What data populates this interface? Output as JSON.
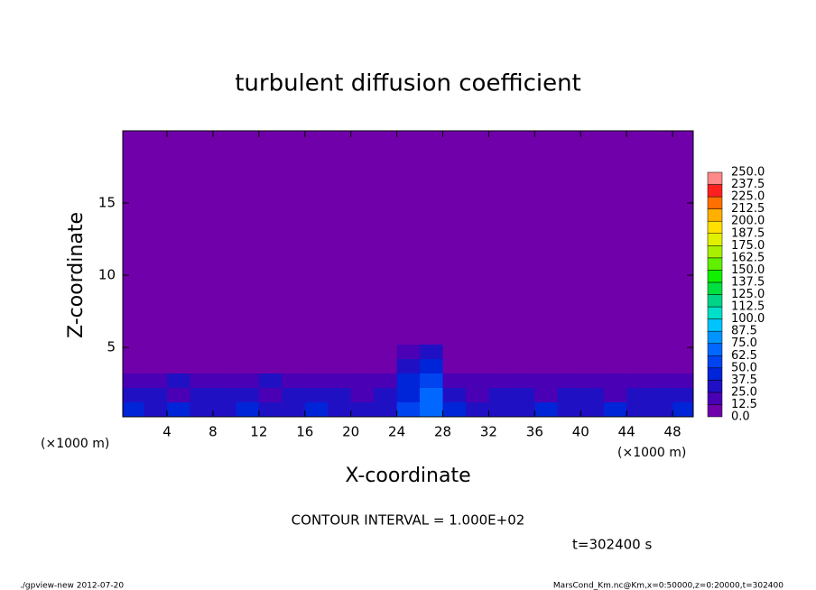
{
  "chart_data": {
    "type": "contour",
    "title": "turbulent diffusion coefficient",
    "x_label": "X-coordinate",
    "y_label": "Z-coordinate",
    "x_unit_left": "(×1000 m)",
    "x_unit_right": "(×1000 m)",
    "contour_interval": "CONTOUR INTERVAL = 1.000E+02",
    "time_label": "t=302400 s",
    "footer_left": "./gpview-new  2012-07-20",
    "footer_right": "MarsCond_Km.nc@Km,x=0:50000,z=0:20000,t=302400",
    "xlim": [
      0.15,
      49.8
    ],
    "ylim": [
      0.2,
      20
    ],
    "xticks": [
      4,
      8,
      12,
      16,
      20,
      24,
      28,
      32,
      36,
      40,
      44,
      48
    ],
    "yticks": [
      5,
      10,
      15
    ],
    "x": [
      1,
      3,
      5,
      7,
      9,
      11,
      13,
      15,
      17,
      19,
      21,
      23,
      25,
      27,
      29,
      31,
      33,
      35,
      37,
      39,
      41,
      43,
      45,
      47,
      49
    ],
    "y": [
      0.7,
      1.7,
      2.7,
      3.7,
      4.7
    ],
    "z": [
      [
        37.5,
        25,
        37.5,
        30,
        25,
        37.5,
        30,
        25,
        37.5,
        30,
        25,
        30,
        50,
        62.5,
        37.5,
        30,
        25,
        30,
        37.5,
        25,
        30,
        37.5,
        25,
        30,
        37.5
      ],
      [
        25,
        30,
        12.5,
        25,
        30,
        25,
        12.5,
        25,
        30,
        25,
        12.5,
        25,
        40,
        62.5,
        25,
        12.5,
        25,
        30,
        12.5,
        25,
        25,
        12.5,
        30,
        25,
        25
      ],
      [
        20,
        12.5,
        25,
        20,
        12.5,
        20,
        25,
        12.5,
        20,
        12.5,
        20,
        12.5,
        37.5,
        50,
        12.5,
        20,
        12.5,
        20,
        12.5,
        20,
        12.5,
        20,
        12.5,
        20,
        12.5
      ],
      [
        5,
        5,
        5,
        5,
        5,
        5,
        5,
        5,
        5,
        5,
        5,
        5,
        25,
        45,
        5,
        5,
        5,
        5,
        5,
        5,
        5,
        5,
        5,
        5,
        5
      ],
      [
        0,
        0,
        0,
        0,
        0,
        0,
        0,
        0,
        0,
        0,
        0,
        0,
        12.5,
        30,
        0,
        0,
        0,
        0,
        0,
        0,
        0,
        0,
        0,
        0,
        0
      ]
    ],
    "levels": [
      {
        "value": 0,
        "label": "0.0"
      },
      {
        "value": 12.5,
        "label": "12.5"
      },
      {
        "value": 25,
        "label": "25.0"
      },
      {
        "value": 37.5,
        "label": "37.5"
      },
      {
        "value": 50,
        "label": "50.0"
      },
      {
        "value": 62.5,
        "label": "62.5"
      },
      {
        "value": 75,
        "label": "75.0"
      },
      {
        "value": 87.5,
        "label": "87.5"
      },
      {
        "value": 100,
        "label": "100.0"
      },
      {
        "value": 112.5,
        "label": "112.5"
      },
      {
        "value": 125,
        "label": "125.0"
      },
      {
        "value": 137.5,
        "label": "137.5"
      },
      {
        "value": 150,
        "label": "150.0"
      },
      {
        "value": 162.5,
        "label": "162.5"
      },
      {
        "value": 175,
        "label": "175.0"
      },
      {
        "value": 187.5,
        "label": "187.5"
      },
      {
        "value": 200,
        "label": "200.0"
      },
      {
        "value": 212.5,
        "label": "212.5"
      },
      {
        "value": 225,
        "label": "225.0"
      },
      {
        "value": 237.5,
        "label": "237.5"
      },
      {
        "value": 250,
        "label": "250.0"
      }
    ],
    "colors": [
      "#7000aa",
      "#4a00b4",
      "#2010c4",
      "#0024d8",
      "#0044f0",
      "#0068ff",
      "#0094ff",
      "#00c4ff",
      "#00e0c8",
      "#00d488",
      "#00e040",
      "#10f000",
      "#60f000",
      "#a8f000",
      "#e0f000",
      "#ffe000",
      "#ffb000",
      "#ff7000",
      "#ff2020",
      "#ff8888"
    ]
  }
}
